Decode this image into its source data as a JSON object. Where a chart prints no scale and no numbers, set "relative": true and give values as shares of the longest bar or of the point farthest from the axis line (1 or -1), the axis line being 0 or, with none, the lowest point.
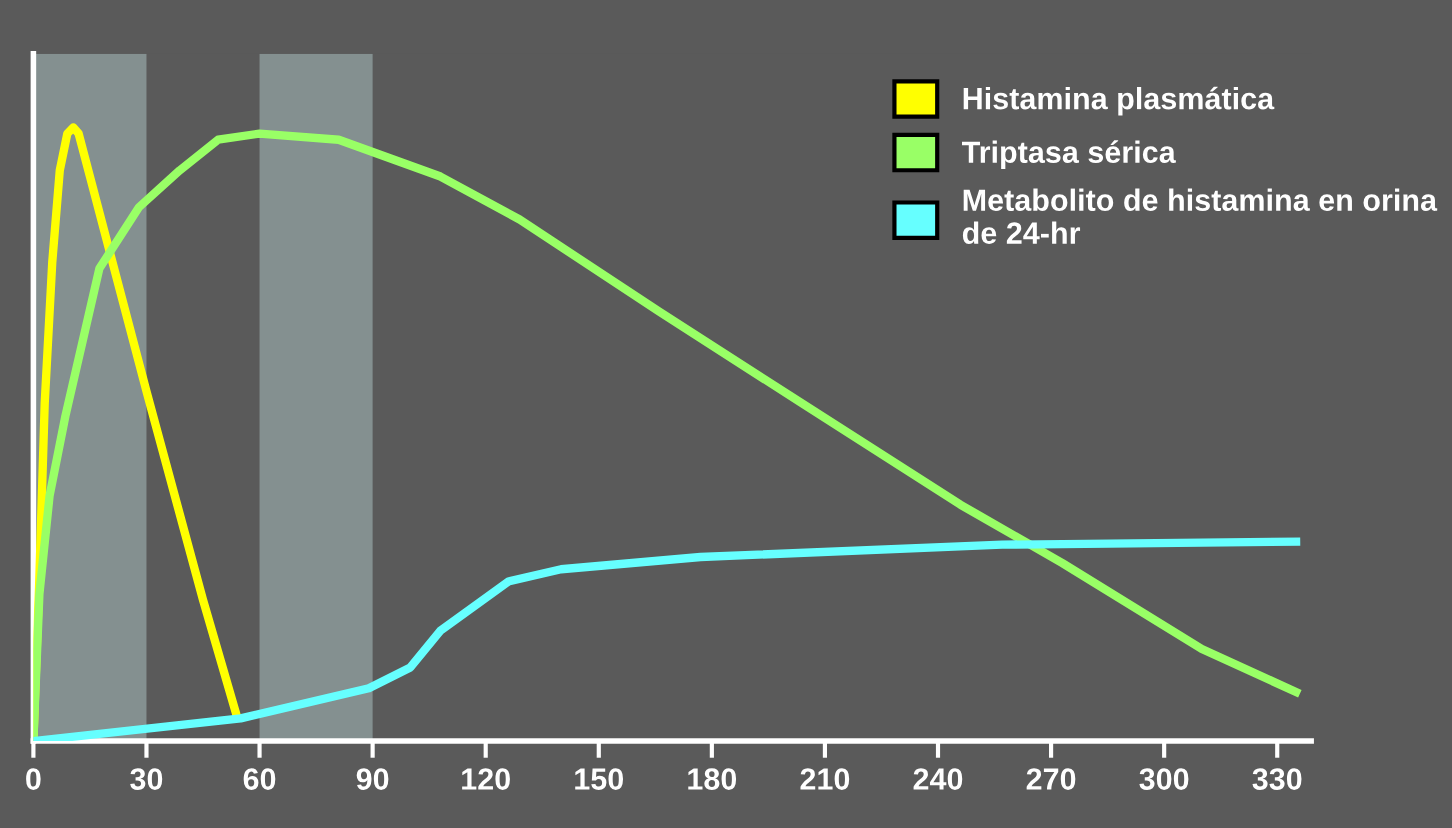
{
  "chart_data": {
    "type": "line",
    "relative": true,
    "xlim": [
      0,
      339
    ],
    "xticks": [
      0,
      30,
      60,
      90,
      120,
      150,
      180,
      210,
      240,
      270,
      300,
      330
    ],
    "grid": false,
    "legend": "top right",
    "marker": "none",
    "line_style": "solid",
    "bands": [
      {
        "axis": "x",
        "from": 0,
        "to": 30,
        "color": "#8c9a9a"
      },
      {
        "axis": "x",
        "from": 60,
        "to": 90,
        "color": "#8c9a9a"
      }
    ],
    "series": [
      {
        "name": "Histamina plasmática",
        "color": "#ffff00",
        "x": [
          0,
          1.5,
          3,
          5,
          7,
          9,
          10.6,
          12,
          15,
          30,
          45,
          54
        ],
        "values": [
          0,
          0.25,
          0.55,
          0.78,
          0.93,
          0.99,
          1.0,
          0.99,
          0.92,
          0.57,
          0.23,
          0.04
        ]
      },
      {
        "name": "Triptasa sérica",
        "color": "#99ff66",
        "x": [
          0,
          1.6,
          4.3,
          8.5,
          17.5,
          28,
          38.8,
          49,
          60,
          81,
          108,
          129,
          166,
          204,
          246,
          273,
          310,
          335
        ],
        "values": [
          0,
          0.24,
          0.4,
          0.53,
          0.77,
          0.87,
          0.93,
          0.98,
          0.99,
          0.98,
          0.92,
          0.85,
          0.7,
          0.55,
          0.385,
          0.29,
          0.15,
          0.08
        ]
      },
      {
        "name": "Metabolito de histamina en orina\nde 24-hr",
        "color": "#66ffff",
        "x": [
          0,
          55,
          89,
          100,
          108,
          117,
          126,
          140,
          177,
          257,
          335
        ],
        "values": [
          0,
          0.037,
          0.086,
          0.12,
          0.18,
          0.22,
          0.26,
          0.28,
          0.3,
          0.32,
          0.325
        ]
      }
    ]
  }
}
